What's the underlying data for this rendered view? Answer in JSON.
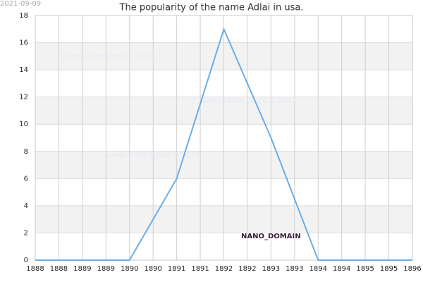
{
  "chart_data": {
    "type": "line",
    "title": "The popularity of the name Adlai in usa.",
    "date_stamp": "2021-09-09",
    "watermarks": [
      "Name of the World © 2021",
      "Name of the World © 2021",
      "Name of the World © 2021"
    ],
    "domain_label": "NANO_DOMAIN",
    "x": [
      1888,
      1889,
      1890,
      1891,
      1892,
      1893,
      1894,
      1895,
      1896
    ],
    "series": [
      {
        "color": "#6aaee8",
        "values": [
          0,
          0,
          0,
          6,
          17,
          9,
          0,
          0,
          0
        ]
      }
    ],
    "xlim": [
      1888,
      1896
    ],
    "xticks": [
      1888,
      {
        "value": 1888.5,
        "label": "1888"
      },
      1889,
      {
        "value": 1889.5,
        "label": "1889"
      },
      1890,
      {
        "value": 1890.5,
        "label": "1890"
      },
      1891,
      {
        "value": 1891.5,
        "label": "1891"
      },
      1892,
      {
        "value": 1892.5,
        "label": "1892"
      },
      1893,
      {
        "value": 1893.5,
        "label": "1893"
      },
      1894,
      {
        "value": 1894.5,
        "label": "1894"
      },
      1895,
      {
        "value": 1895.5,
        "label": "1895"
      },
      1896
    ],
    "ylim": [
      0,
      18
    ],
    "yticks": [
      0,
      2,
      4,
      6,
      8,
      10,
      12,
      14,
      16,
      18
    ],
    "grid": true,
    "alternate_bands": true
  }
}
